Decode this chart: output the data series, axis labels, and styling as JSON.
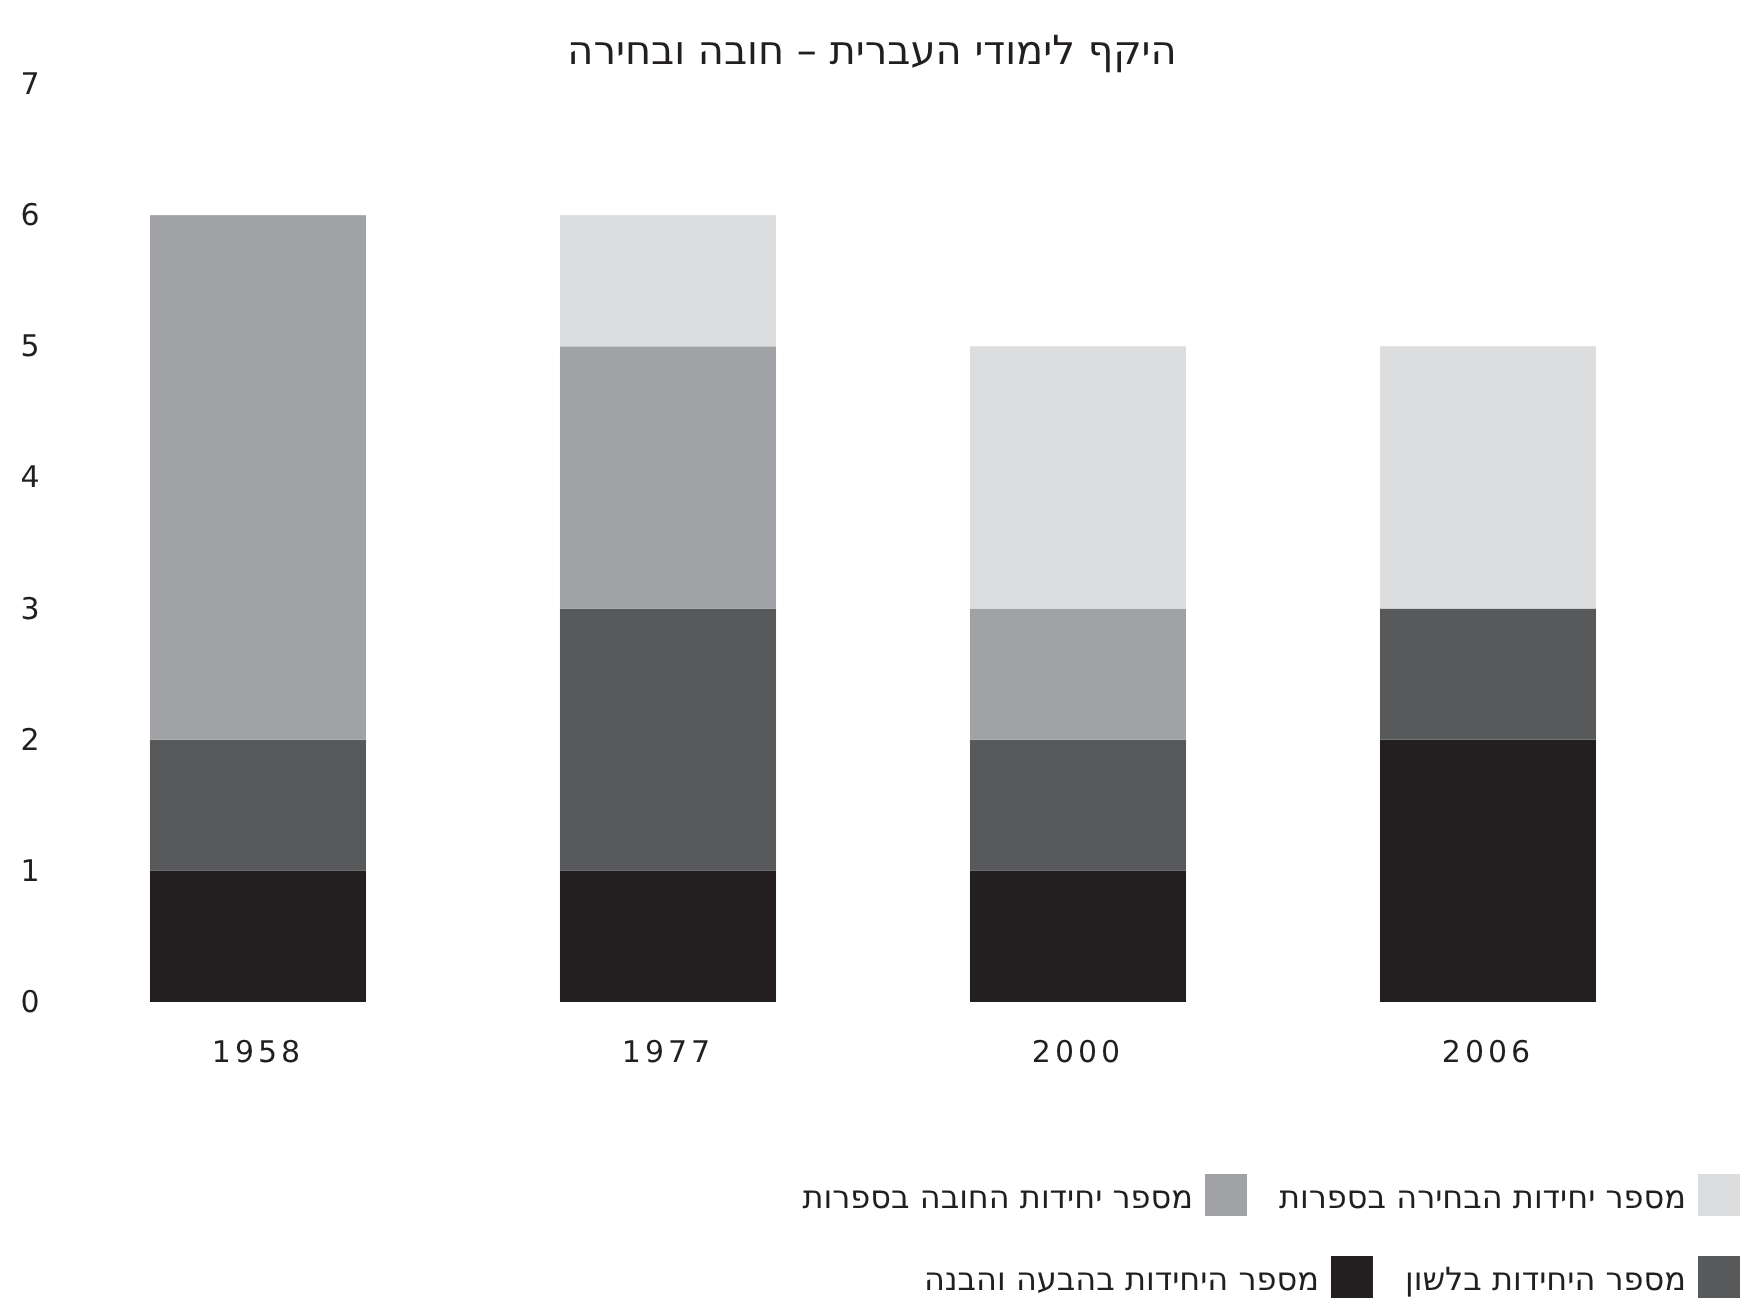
{
  "chart_data": {
    "type": "bar",
    "title": "היקף לימודי העברית – חובה ובחירה",
    "stacked": true,
    "categories": [
      "1958",
      "1977",
      "2000",
      "2006"
    ],
    "series": [
      {
        "name": "מספר היחידות בהבעה והבנה",
        "color": "#231f20",
        "values": [
          1,
          1,
          1,
          2
        ]
      },
      {
        "name": "מספר היחידות בלשון",
        "color": "#58595b",
        "values": [
          1,
          2,
          1,
          1
        ]
      },
      {
        "name": "מספר יחידות החובה בספרות",
        "color": "#a1a2a5",
        "values": [
          4,
          2,
          1,
          0
        ]
      },
      {
        "name": "מספר יחידות הבחירה בספרות",
        "color": "#dcdddf",
        "values": [
          0,
          1,
          2,
          2
        ]
      }
    ],
    "ylim": [
      0,
      7
    ],
    "yticks": [
      0,
      1,
      2,
      3,
      4,
      5,
      6,
      7
    ],
    "grid": false,
    "legend": "bottom"
  }
}
